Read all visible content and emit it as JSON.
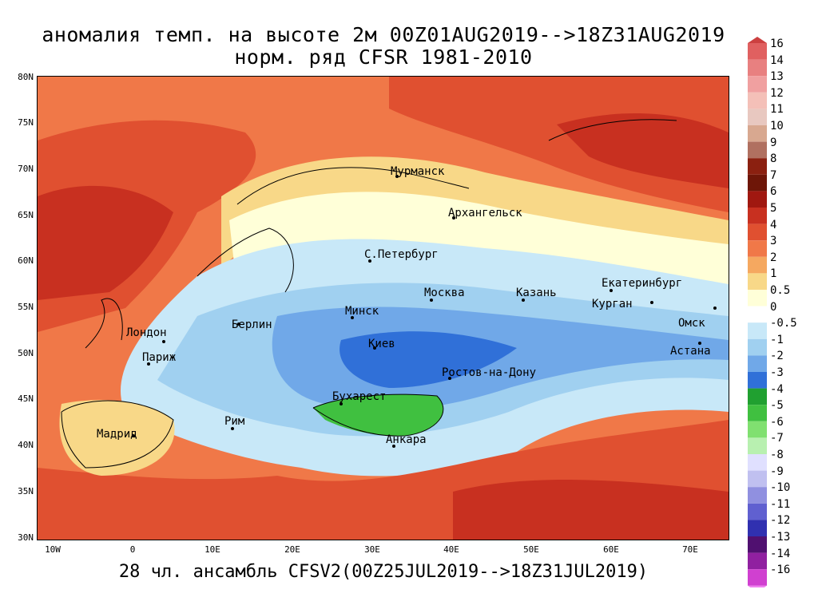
{
  "title_line1": "аномалия темп. на высоте 2м 00Z01AUG2019-->18Z31AUG2019",
  "title_line2": "норм. ряд CFSR 1981-2010",
  "footer": "28 чл. ансамбль CFSV2(00Z25JUL2019-->18Z31JUL2019)",
  "lat_ticks": [
    "80N",
    "75N",
    "70N",
    "65N",
    "60N",
    "55N",
    "50N",
    "45N",
    "40N",
    "35N",
    "30N"
  ],
  "lon_ticks": [
    "10W",
    "0",
    "10E",
    "20E",
    "30E",
    "40E",
    "50E",
    "60E",
    "70E"
  ],
  "legend": {
    "labels": [
      "16",
      "14",
      "13",
      "12",
      "11",
      "10",
      "9",
      "8",
      "7",
      "6",
      "5",
      "4",
      "3",
      "2",
      "1",
      "0.5",
      "0",
      "-0.5",
      "-1",
      "-2",
      "-3",
      "-4",
      "-5",
      "-6",
      "-7",
      "-8",
      "-9",
      "-10",
      "-11",
      "-12",
      "-13",
      "-14",
      "-16"
    ],
    "colors": [
      "#cc4040",
      "#e06060",
      "#e88080",
      "#f0a0a0",
      "#f4c0b8",
      "#e8c8c0",
      "#d8a890",
      "#b07060",
      "#8b2010",
      "#6e1608",
      "#a01810",
      "#c83020",
      "#e05030",
      "#f07848",
      "#f5a860",
      "#f8d888",
      "#ffffd8",
      "#ffffff",
      "#c8e8f8",
      "#a0d0f0",
      "#70a8e8",
      "#3070d8",
      "#20a030",
      "#40c040",
      "#80e070",
      "#b8f0b0",
      "#e0e0ff",
      "#c0c0f0",
      "#9090e0",
      "#6060d0",
      "#3030b0",
      "#501070",
      "#9020a0",
      "#d040d0",
      "#f080f0"
    ]
  },
  "cities": [
    {
      "name": "Мурманск"
    },
    {
      "name": "Архангельск"
    },
    {
      "name": "С.Петербург"
    },
    {
      "name": "Москва"
    },
    {
      "name": "Казань"
    },
    {
      "name": "Екатеринбург"
    },
    {
      "name": "Курган"
    },
    {
      "name": "Омск"
    },
    {
      "name": "Астана"
    },
    {
      "name": "Минск"
    },
    {
      "name": "Киев"
    },
    {
      "name": "Берлин"
    },
    {
      "name": "Лондон"
    },
    {
      "name": "Париж"
    },
    {
      "name": "Ростов-на-Дону"
    },
    {
      "name": "Бухарест"
    },
    {
      "name": "Рим"
    },
    {
      "name": "Мадрид"
    },
    {
      "name": "Анкара"
    }
  ]
}
